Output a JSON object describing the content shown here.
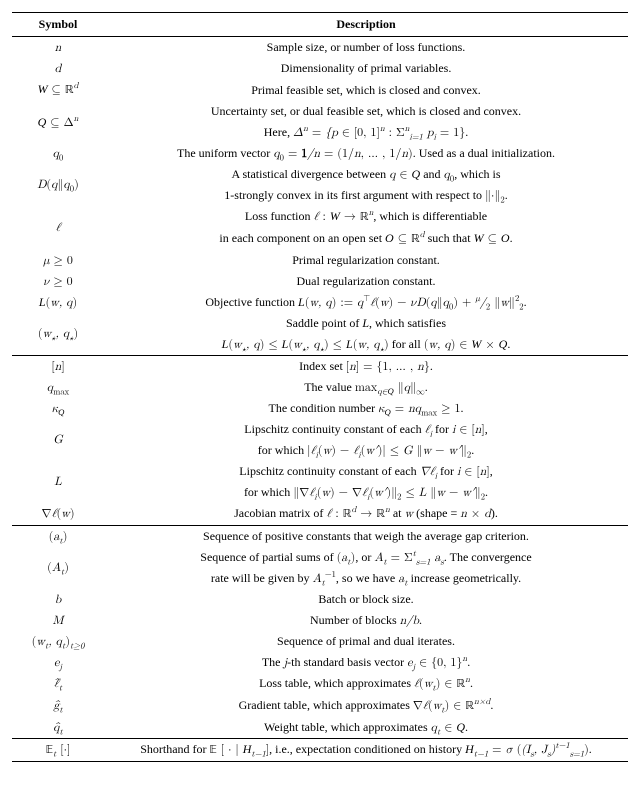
{
  "table": {
    "header": {
      "symbol": "Symbol",
      "description": "Description"
    },
    "colors": {
      "text": "#000000",
      "background": "#ffffff",
      "rule": "#000000"
    },
    "fonts": {
      "main_family": "Times New Roman",
      "base_size_pt": 10,
      "header_weight": "bold"
    },
    "structure": "two-column definition table with horizontal section rules",
    "sections": [
      {
        "rows": [
          {
            "symbol_tex": "n",
            "desc": "Sample size, or number of loss functions."
          },
          {
            "symbol_tex": "d",
            "desc": "Dimensionality of primal variables."
          },
          {
            "symbol_tex": "\\mathcal{W}\\subseteq\\mathbb{R}^d",
            "desc": "Primal feasible set, which is closed and convex."
          },
          {
            "symbol_tex": "\\mathcal{Q}\\subseteq\\Delta^n",
            "desc_lines": [
              "Uncertainty set, or dual feasible set, which is closed and convex.",
              "Here, \\Delta^n=\\{p\\in[0,1]^n:\\sum_{i=1}^n p_i=1\\}."
            ]
          },
          {
            "symbol_tex": "q_0",
            "desc": "The uniform vector q_0=\\mathbf{1}/n=(1/n,\\ldots,1/n). Used as a dual initialization."
          },
          {
            "symbol_tex": "D(q\\Vert q_0)",
            "desc_lines": [
              "A statistical divergence between q\\in\\mathcal{Q} and q_0, which is",
              "1-strongly convex in its first argument with respect to \\|\\cdot\\|_2."
            ]
          },
          {
            "symbol_tex": "\\ell",
            "desc_lines": [
              "Loss function \\ell:\\mathcal{W}\\to\\mathbb{R}^n, which is differentiable",
              "in each component on an open set \\mathcal{O}\\subseteq\\mathbb{R}^d such that \\mathcal{W}\\subseteq\\mathcal{O}."
            ]
          },
          {
            "symbol_tex": "\\mu\\ge 0",
            "desc": "Primal regularization constant."
          },
          {
            "symbol_tex": "\\nu\\ge 0",
            "desc": "Dual regularization constant."
          },
          {
            "symbol_tex": "\\mathcal{L}(w,q)",
            "desc": "Objective function \\mathcal{L}(w,q):=q^\\top\\ell(w)-\\nu D(q\\Vert q_0)+\\tfrac{\\mu}{2}\\|w\\|_2^2."
          },
          {
            "symbol_tex": "(w_\\star,q_\\star)",
            "desc_lines": [
              "Saddle point of \\mathcal{L}, which satisfies",
              "\\mathcal{L}(w_\\star,q)\\le\\mathcal{L}(w_\\star,q_\\star)\\le\\mathcal{L}(w,q_\\star) for all (w,q)\\in\\mathcal{W}\\times\\mathcal{Q}."
            ]
          }
        ]
      },
      {
        "rows": [
          {
            "symbol_tex": "[n]",
            "desc": "Index set [n]=\\{1,\\ldots,n\\}."
          },
          {
            "symbol_tex": "q_{\\max}",
            "desc": "The value \\max_{q\\in\\mathcal{Q}}\\|q\\|_\\infty."
          },
          {
            "symbol_tex": "\\kappa_\\mathcal{Q}",
            "desc": "The condition number \\kappa_\\mathcal{Q}=nq_{\\max}\\ge 1."
          },
          {
            "symbol_tex": "G",
            "desc_lines": [
              "Lipschitz continuity constant of each \\ell_i for i\\in[n],",
              "for which |\\ell_i(w)-\\ell_i(w')|\\le G\\|w-w'\\|_2."
            ]
          },
          {
            "symbol_tex": "L",
            "desc_lines": [
              "Lipschitz continuity constant of each \\nabla\\ell_i for i\\in[n],",
              "for which \\|\\nabla\\ell_i(w)-\\nabla\\ell_i(w')\\|_2\\le L\\|w-w'\\|_2."
            ]
          },
          {
            "symbol_tex": "\\nabla\\ell(w)",
            "desc": "Jacobian matrix of \\ell:\\mathbb{R}^d\\to\\mathbb{R}^n at w (shape = n\\times d)."
          }
        ]
      },
      {
        "rows": [
          {
            "symbol_tex": "(a_t)",
            "desc": "Sequence of positive constants that weigh the average gap criterion."
          },
          {
            "symbol_tex": "(A_t)",
            "desc_lines": [
              "Sequence of partial sums of (a_t), or A_t=\\sum_{s=1}^t a_s. The convergence",
              "rate will be given by A_t^{-1}, so we have a_t increase geometrically."
            ]
          },
          {
            "symbol_tex": "b",
            "desc": "Batch or block size."
          },
          {
            "symbol_tex": "M",
            "desc": "Number of blocks n/b."
          },
          {
            "symbol_tex": "(w_t,q_t)_{t\\ge 0}",
            "desc": "Sequence of primal and dual iterates."
          },
          {
            "symbol_tex": "e_j",
            "desc": "The j-th standard basis vector e_j\\in\\{0,1\\}^n."
          },
          {
            "symbol_tex": "\\hat{\\ell}_t",
            "desc": "Loss table, which approximates \\ell(w_t)\\in\\mathbb{R}^n."
          },
          {
            "symbol_tex": "\\hat{g}_t",
            "desc": "Gradient table, which approximates \\nabla\\ell(w_t)\\in\\mathbb{R}^{n\\times d}."
          },
          {
            "symbol_tex": "\\hat{q}_t",
            "desc": "Weight table, which approximates q_t\\in\\mathcal{Q}."
          }
        ]
      },
      {
        "rows": [
          {
            "symbol_tex": "\\mathbb{E}_t[\\cdot]",
            "desc": "Shorthand for \\mathbb{E}[\\,\\cdot\\,|\\,\\mathcal{H}_{t-1}], i.e., expectation conditioned on history \\mathcal{H}_{t-1}=\\sigma\\big((I_s,J_s)_{s=1}^{t-1}\\big)."
          }
        ]
      }
    ]
  }
}
